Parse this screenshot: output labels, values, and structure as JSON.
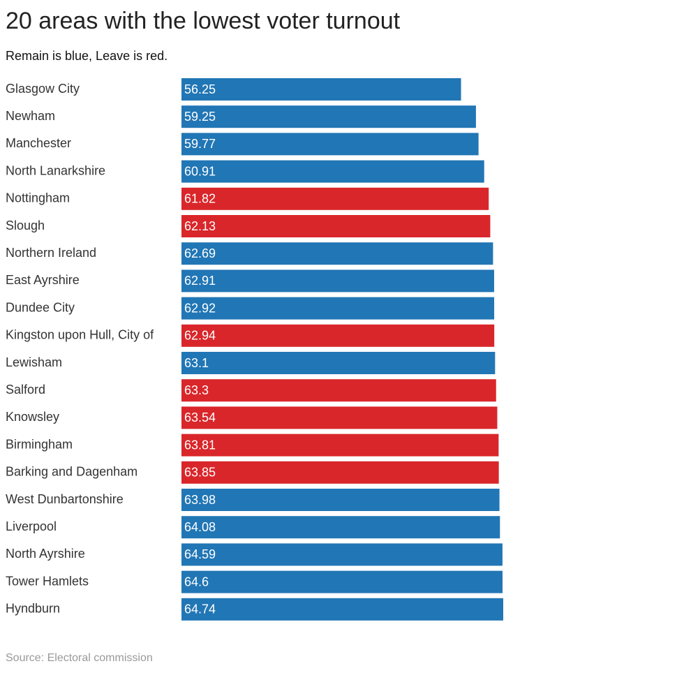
{
  "chart_data": {
    "type": "barh",
    "title": "20 areas with the lowest voter turnout",
    "subtitle": "Remain is blue, Leave is red.",
    "source": "Source: Electoral commission",
    "categories": [
      "Glasgow City",
      "Newham",
      "Manchester",
      "North Lanarkshire",
      "Nottingham",
      "Slough",
      "Northern Ireland",
      "East Ayrshire",
      "Dundee City",
      "Kingston upon Hull, City of",
      "Lewisham",
      "Salford",
      "Knowsley",
      "Birmingham",
      "Barking and Dagenham",
      "West Dunbartonshire",
      "Liverpool",
      "North Ayrshire",
      "Tower Hamlets",
      "Hyndburn"
    ],
    "values": [
      56.25,
      59.25,
      59.77,
      60.91,
      61.82,
      62.13,
      62.69,
      62.91,
      62.92,
      62.94,
      63.1,
      63.3,
      63.54,
      63.81,
      63.85,
      63.98,
      64.08,
      64.59,
      64.6,
      64.74
    ],
    "colors": [
      "#2176b5",
      "#2176b5",
      "#2176b5",
      "#2176b5",
      "#d9262a",
      "#d9262a",
      "#2176b5",
      "#2176b5",
      "#2176b5",
      "#d9262a",
      "#2176b5",
      "#d9262a",
      "#d9262a",
      "#d9262a",
      "#d9262a",
      "#2176b5",
      "#2176b5",
      "#2176b5",
      "#2176b5",
      "#2176b5"
    ]
  }
}
